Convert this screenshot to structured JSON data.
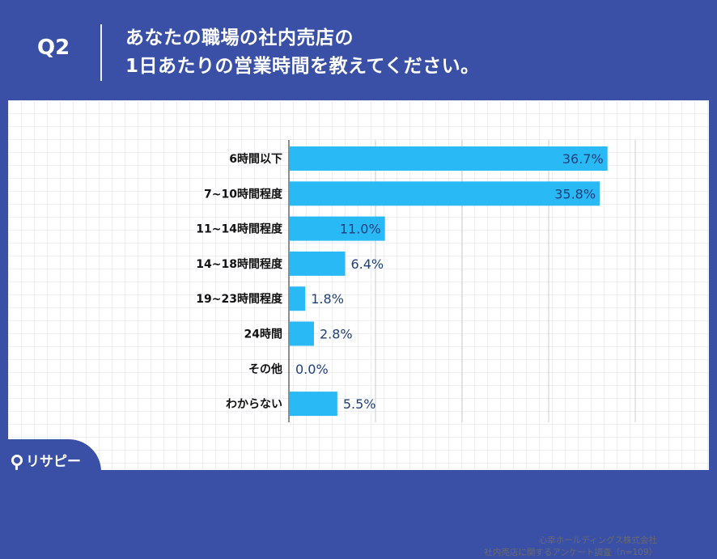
{
  "header": {
    "question_label": "Q2",
    "title_line1": "あなたの職場の社内売店の",
    "title_line2": "1日あたりの営業時間を教えてください。"
  },
  "chart_data": {
    "type": "bar",
    "orientation": "horizontal",
    "categories": [
      "6時間以下",
      "7~10時間程度",
      "11~14時間程度",
      "14~18時間程度",
      "19~23時間程度",
      "24時間",
      "その他",
      "わからない"
    ],
    "values": [
      36.7,
      35.8,
      11.0,
      6.4,
      1.8,
      2.8,
      0.0,
      5.5
    ],
    "value_labels": [
      "36.7%",
      "35.8%",
      "11.0%",
      "6.4%",
      "1.8%",
      "2.8%",
      "0.0%",
      "5.5%"
    ],
    "unit": "%",
    "xlim": [
      0,
      40
    ],
    "grid": true,
    "bar_color": "#29b9f5"
  },
  "source": {
    "line1": "心幸ホールディングス株式会社",
    "line2": "社内売店に関するアンケート調査（n=109）"
  },
  "logo": {
    "text": "リサピー",
    "icon": "pin-icon"
  },
  "colors": {
    "background": "#3a4fa6",
    "bar": "#29b9f5",
    "value_text": "#1f3f7a"
  }
}
